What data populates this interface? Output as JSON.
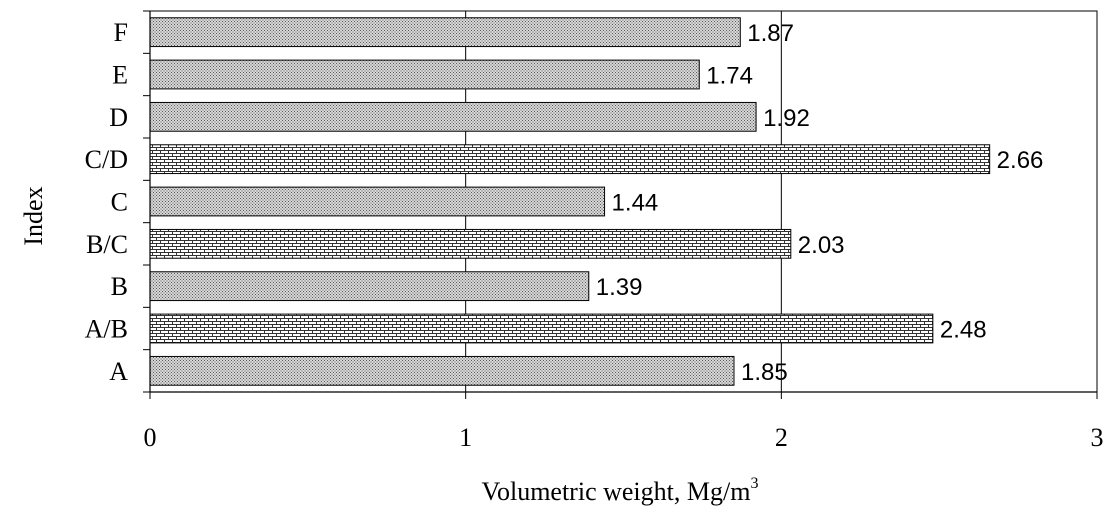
{
  "chart_data": {
    "type": "bar",
    "orientation": "horizontal",
    "categories": [
      "A",
      "A/B",
      "B",
      "B/C",
      "C",
      "C/D",
      "D",
      "E",
      "F"
    ],
    "values": [
      1.85,
      2.48,
      1.39,
      2.03,
      1.44,
      2.66,
      1.92,
      1.74,
      1.87
    ],
    "data_labels": [
      "1.85",
      "2.48",
      "1.39",
      "2.03",
      "1.44",
      "2.66",
      "1.92",
      "1.74",
      "1.87"
    ],
    "patterns": [
      "dots",
      "bricks",
      "dots",
      "bricks",
      "dots",
      "bricks",
      "dots",
      "dots",
      "dots"
    ],
    "xlim": [
      0,
      3
    ],
    "x_ticks": [
      "0",
      "1",
      "2",
      "3"
    ],
    "xlabel": "Volumetric  weight, Mg/m",
    "xlabel_superscript": "3",
    "ylabel": "Index",
    "grid": "vertical gridlines",
    "legend": "none",
    "colors": {
      "bar_border": "#000000",
      "pattern_ink": "#000000",
      "background": "#ffffff"
    }
  }
}
